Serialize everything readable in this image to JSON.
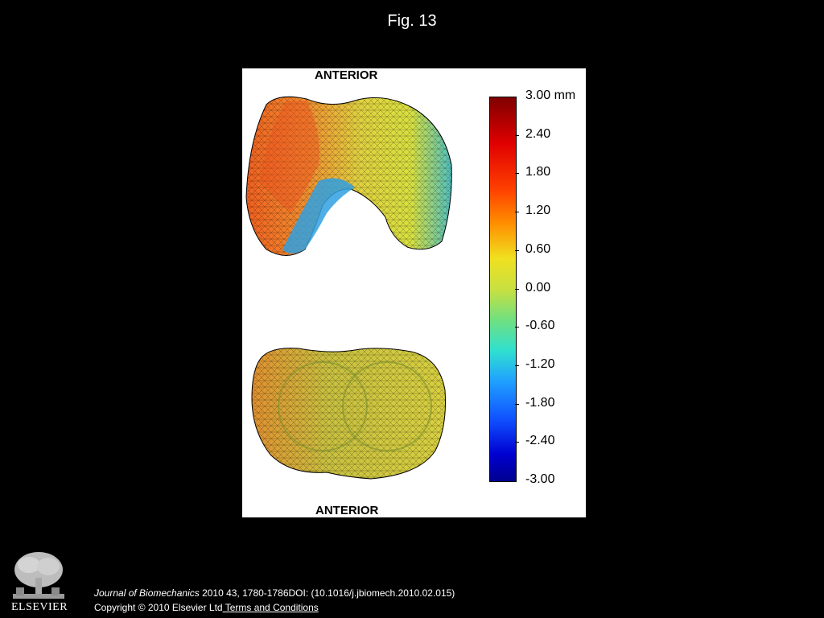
{
  "figure": {
    "title": "Fig. 13",
    "labels": {
      "anterior_top": "ANTERIOR",
      "anterior_bottom": "ANTERIOR"
    },
    "colorbar": {
      "ticks": [
        "3.00 mm",
        "2.40",
        "1.80",
        "1.20",
        "0.60",
        "0.00",
        "-0.60",
        "-1.20",
        "-1.80",
        "-2.40",
        "-3.00"
      ],
      "range_mm": [
        -3.0,
        3.0
      ],
      "colormap": "jet"
    }
  },
  "footer": {
    "journal": "Journal of Biomechanics",
    "citation_rest": " 2010 43, 1780-1786DOI: (10.1016/j.jbiomech.2010.02.015)",
    "copyright": "Copyright © 2010 Elsevier Ltd",
    "terms_link": " Terms and Conditions",
    "publisher_logo_text": "ELSEVIER"
  },
  "colors": {
    "background": "#000000",
    "panel": "#ffffff",
    "text": "#ffffff"
  }
}
